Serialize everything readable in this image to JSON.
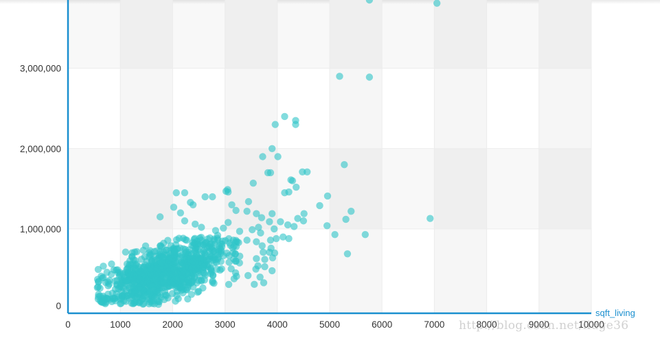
{
  "chart_data": {
    "type": "scatter",
    "xlabel": "sqft_living",
    "ylabel": "",
    "xlim": [
      0,
      10000
    ],
    "ylim": [
      -50000,
      3850000
    ],
    "x_ticks": [
      0,
      1000,
      2000,
      3000,
      4000,
      5000,
      6000,
      7000,
      8000,
      9000,
      10000
    ],
    "x_tick_labels": [
      "0",
      "1000",
      "2000",
      "3000",
      "4000",
      "5000",
      "6000",
      "7000",
      "8000",
      "9000",
      "10000"
    ],
    "y_ticks": [
      0,
      1000000,
      2000000,
      3000000
    ],
    "y_tick_labels": [
      "0",
      "1,000,000",
      "2,000,000",
      "3,000,000"
    ],
    "grid": true,
    "marker_color": "#2ec4c8",
    "points": [
      [
        5760,
        3850000
      ],
      [
        7050,
        3810000
      ],
      [
        5190,
        2900000
      ],
      [
        5760,
        2890000
      ],
      [
        4140,
        2400000
      ],
      [
        4350,
        2350000
      ],
      [
        3960,
        2300000
      ],
      [
        4350,
        2300000
      ],
      [
        3900,
        2000000
      ],
      [
        3720,
        1900000
      ],
      [
        4010,
        1900000
      ],
      [
        5280,
        1800000
      ],
      [
        3820,
        1700000
      ],
      [
        3870,
        1700000
      ],
      [
        4480,
        1710000
      ],
      [
        4570,
        1710000
      ],
      [
        4260,
        1610000
      ],
      [
        4290,
        1600000
      ],
      [
        4360,
        1520000
      ],
      [
        3540,
        1570000
      ],
      [
        4140,
        1450000
      ],
      [
        4220,
        1460000
      ],
      [
        4960,
        1410000
      ],
      [
        4810,
        1290000
      ],
      [
        5410,
        1220000
      ],
      [
        5310,
        1120000
      ],
      [
        6920,
        1130000
      ],
      [
        5680,
        930000
      ],
      [
        5100,
        930000
      ],
      [
        5340,
        690000
      ],
      [
        4950,
        1040000
      ],
      [
        2070,
        1450000
      ],
      [
        2230,
        1450000
      ],
      [
        2620,
        1400000
      ],
      [
        2760,
        1400000
      ],
      [
        3020,
        1470000
      ],
      [
        3050,
        1490000
      ],
      [
        3060,
        1460000
      ],
      [
        3450,
        1340000
      ],
      [
        3130,
        1300000
      ],
      [
        3210,
        1230000
      ],
      [
        3420,
        1220000
      ],
      [
        3600,
        1190000
      ],
      [
        3900,
        1190000
      ],
      [
        3700,
        1140000
      ],
      [
        4060,
        1090000
      ],
      [
        4200,
        1050000
      ],
      [
        4390,
        1130000
      ],
      [
        4500,
        1100000
      ],
      [
        4510,
        1190000
      ],
      [
        4320,
        1030000
      ],
      [
        3850,
        1090000
      ],
      [
        3640,
        1020000
      ],
      [
        3680,
        950000
      ],
      [
        3940,
        1000000
      ],
      [
        3980,
        880000
      ],
      [
        4110,
        900000
      ],
      [
        4220,
        880000
      ],
      [
        3870,
        860000
      ],
      [
        3520,
        990000
      ],
      [
        3420,
        860000
      ],
      [
        3600,
        840000
      ],
      [
        3710,
        790000
      ],
      [
        3880,
        760000
      ],
      [
        3950,
        700000
      ],
      [
        3850,
        710000
      ],
      [
        3730,
        710000
      ],
      [
        3600,
        630000
      ],
      [
        3910,
        640000
      ],
      [
        3760,
        620000
      ],
      [
        3760,
        530000
      ],
      [
        3630,
        540000
      ],
      [
        3900,
        480000
      ],
      [
        3590,
        500000
      ],
      [
        3670,
        400000
      ],
      [
        3440,
        420000
      ],
      [
        3560,
        310000
      ],
      [
        3740,
        330000
      ],
      [
        3220,
        410000
      ],
      [
        2020,
        1270000
      ],
      [
        2150,
        1200000
      ],
      [
        2230,
        1100000
      ],
      [
        2430,
        1060000
      ],
      [
        2340,
        1330000
      ],
      [
        2390,
        1300000
      ],
      [
        1760,
        1150000
      ],
      [
        2550,
        1020000
      ],
      [
        2820,
        980000
      ],
      [
        2970,
        1010000
      ],
      [
        3060,
        1080000
      ],
      [
        3280,
        970000
      ],
      [
        3160,
        860000
      ],
      [
        3260,
        830000
      ],
      [
        2940,
        780000
      ],
      [
        2860,
        920000
      ]
    ]
  }
}
